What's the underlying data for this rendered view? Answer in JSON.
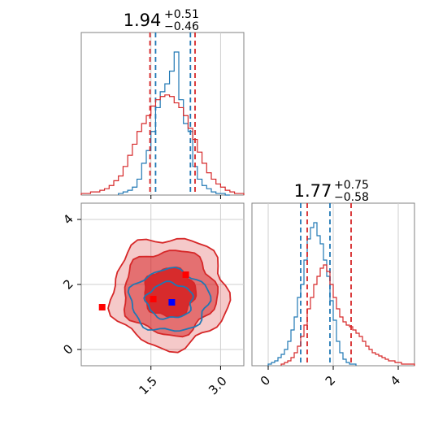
{
  "chart_data": [
    {
      "type": "histogram",
      "panel": "x1-marginal",
      "title": {
        "median": "1.94",
        "plus": "+0.51",
        "minus": "−0.46"
      },
      "xlim": [
        0.0,
        3.5
      ],
      "x_ticks": [
        1.5,
        3.0
      ],
      "grid": true,
      "series": [
        {
          "color": "#1f77b4",
          "bin_edges": [
            0.8,
            0.9,
            1.0,
            1.1,
            1.2,
            1.3,
            1.4,
            1.5,
            1.6,
            1.7,
            1.8,
            1.9,
            2.0,
            2.1,
            2.2,
            2.3,
            2.4,
            2.5,
            2.6,
            2.7,
            2.8,
            2.9,
            3.0,
            3.1,
            3.2
          ],
          "counts": [
            1,
            2,
            3,
            5,
            10,
            20,
            28,
            40,
            55,
            65,
            70,
            78,
            90,
            60,
            45,
            40,
            18,
            10,
            6,
            4,
            2,
            1,
            1,
            0
          ],
          "quantile_lines": [
            1.6,
            2.35
          ]
        },
        {
          "color": "#d62728",
          "bin_edges": [
            0.0,
            0.1,
            0.2,
            0.3,
            0.4,
            0.5,
            0.6,
            0.7,
            0.8,
            0.9,
            1.0,
            1.1,
            1.2,
            1.3,
            1.4,
            1.5,
            1.6,
            1.7,
            1.8,
            1.9,
            2.0,
            2.1,
            2.2,
            2.3,
            2.4,
            2.5,
            2.6,
            2.7,
            2.8,
            2.9,
            3.0,
            3.1,
            3.2,
            3.3,
            3.4,
            3.5
          ],
          "counts": [
            1,
            1,
            2,
            2,
            3,
            4,
            6,
            9,
            12,
            18,
            25,
            32,
            40,
            45,
            50,
            56,
            60,
            62,
            63,
            62,
            58,
            55,
            50,
            42,
            35,
            27,
            20,
            14,
            10,
            7,
            5,
            3,
            2,
            1,
            1
          ],
          "quantile_lines": [
            1.48,
            2.45
          ]
        }
      ]
    },
    {
      "type": "histogram",
      "panel": "x2-marginal",
      "title": {
        "median": "1.77",
        "plus": "+0.75",
        "minus": "−0.58"
      },
      "xlim": [
        -0.5,
        4.5
      ],
      "x_ticks": [
        0,
        2,
        4
      ],
      "x_tick_labels": [
        "0",
        "2",
        "4"
      ],
      "grid": true,
      "series": [
        {
          "color": "#1f77b4",
          "bin_edges": [
            0.0,
            0.1,
            0.2,
            0.3,
            0.4,
            0.5,
            0.6,
            0.7,
            0.8,
            0.9,
            1.0,
            1.1,
            1.2,
            1.3,
            1.4,
            1.5,
            1.6,
            1.7,
            1.8,
            1.9,
            2.0,
            2.1,
            2.2,
            2.3,
            2.4,
            2.5,
            2.6,
            2.7
          ],
          "counts": [
            1,
            2,
            3,
            5,
            7,
            10,
            15,
            22,
            30,
            42,
            50,
            65,
            78,
            85,
            88,
            80,
            75,
            65,
            55,
            40,
            28,
            15,
            8,
            4,
            2,
            1,
            1
          ],
          "quantile_lines": [
            1.0,
            1.9
          ]
        },
        {
          "color": "#d62728",
          "bin_edges": [
            0.4,
            0.5,
            0.6,
            0.7,
            0.8,
            0.9,
            1.0,
            1.1,
            1.2,
            1.3,
            1.4,
            1.5,
            1.6,
            1.7,
            1.8,
            1.9,
            2.0,
            2.1,
            2.2,
            2.3,
            2.4,
            2.5,
            2.6,
            2.7,
            2.8,
            2.9,
            3.0,
            3.1,
            3.2,
            3.3,
            3.4,
            3.5,
            3.6,
            3.7,
            3.8,
            3.9,
            4.0,
            4.1,
            4.2,
            4.3,
            4.4,
            4.5
          ],
          "counts": [
            1,
            2,
            3,
            5,
            8,
            12,
            18,
            25,
            35,
            42,
            50,
            55,
            60,
            62,
            58,
            50,
            42,
            35,
            30,
            27,
            25,
            24,
            22,
            20,
            18,
            15,
            12,
            10,
            8,
            7,
            6,
            5,
            4,
            3,
            3,
            2,
            2,
            1,
            1,
            1,
            1
          ],
          "quantile_lines": [
            1.2,
            2.55
          ]
        }
      ]
    },
    {
      "type": "contour",
      "panel": "x1-vs-x2",
      "xlim": [
        0.0,
        3.5
      ],
      "ylim": [
        -0.5,
        4.5
      ],
      "x_ticks": [
        1.5,
        3.0
      ],
      "x_tick_labels": [
        "1.5",
        "3.0"
      ],
      "y_ticks": [
        0,
        2,
        4
      ],
      "y_tick_labels": [
        "0",
        "2",
        "4"
      ],
      "grid": true,
      "series": [
        {
          "color": "#d62728",
          "filled": true,
          "center": [
            1.9,
            1.75
          ],
          "levels": [
            {
              "rx": 0.55,
              "ry": 0.75,
              "opacity": 0.95
            },
            {
              "rx": 1.0,
              "ry": 1.3,
              "opacity": 0.55
            },
            {
              "rx": 1.25,
              "ry": 1.7,
              "opacity": 0.25
            }
          ],
          "markers": [
            [
              0.45,
              1.3
            ],
            [
              1.55,
              1.55
            ],
            [
              2.25,
              2.3
            ]
          ]
        },
        {
          "color": "#1f77b4",
          "filled": false,
          "center": [
            1.9,
            1.5
          ],
          "levels": [
            {
              "rx": 0.5,
              "ry": 0.55
            },
            {
              "rx": 0.85,
              "ry": 0.95
            }
          ],
          "markers": [
            [
              1.95,
              1.45
            ]
          ]
        }
      ]
    }
  ]
}
